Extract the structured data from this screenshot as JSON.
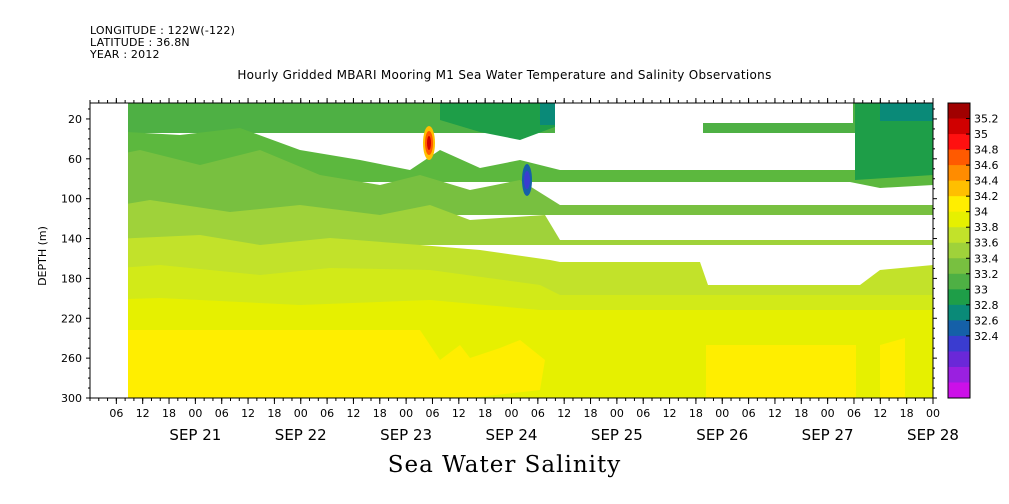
{
  "header": {
    "longitude": "LONGITUDE : 122W(-122)",
    "latitude": "LATITUDE : 36.8N",
    "year": "YEAR : 2012"
  },
  "chart_data": {
    "type": "heatmap",
    "title": "Hourly Gridded MBARI Mooring M1 Sea Water Temperature and Salinity Observations",
    "caption": "Sea Water Salinity",
    "ylabel": "DEPTH (m)",
    "xlabel": "",
    "x_range_hours": [
      "2012-09-20 00:00",
      "2012-09-28 00:00"
    ],
    "ylim": [
      300,
      4
    ],
    "y_ticks": [
      20,
      60,
      100,
      140,
      180,
      220,
      260,
      300
    ],
    "x_hour_ticks": [
      "06",
      "12",
      "18",
      "00",
      "06",
      "12",
      "18",
      "00",
      "06",
      "12",
      "18",
      "00",
      "06",
      "12",
      "18",
      "00",
      "06",
      "12",
      "18",
      "00",
      "06",
      "12",
      "18",
      "00",
      "06",
      "12",
      "18",
      "00",
      "06",
      "12",
      "18",
      "00"
    ],
    "x_day_labels": [
      "SEP 21",
      "SEP 22",
      "SEP 23",
      "SEP 24",
      "SEP 25",
      "SEP 26",
      "SEP 27",
      "SEP 28"
    ],
    "colorbar_levels": [
      "35.2",
      "35",
      "34.8",
      "34.6",
      "34.4",
      "34.2",
      "34",
      "33.8",
      "33.6",
      "33.4",
      "33.2",
      "33",
      "32.8",
      "32.6",
      "32.4"
    ],
    "colorbar_colors": [
      "#a00000",
      "#d00000",
      "#ff1010",
      "#ff5a00",
      "#ff8c00",
      "#ffbf00",
      "#ffee00",
      "#e6f000",
      "#c2e22a",
      "#9fd23a",
      "#78c040",
      "#4eb044",
      "#1e9e48",
      "#0a8a78",
      "#1560a8",
      "#3a3cd0",
      "#6a28d8",
      "#9a20e0",
      "#cc10e8"
    ],
    "missing_data": [
      {
        "time": [
          "2012-09-20 00:00",
          "2012-09-21 12:00"
        ],
        "depth": [
          4,
          300
        ]
      },
      {
        "time": [
          "2012-09-25 03:00",
          "2012-09-26 06:00"
        ],
        "depth": [
          4,
          60
        ]
      },
      {
        "time": [
          "2012-09-26 06:00",
          "2012-09-27 12:00"
        ],
        "depth": [
          4,
          20
        ]
      }
    ],
    "salinity_profile_by_depth": [
      {
        "depth": 10,
        "salinity": 33.3
      },
      {
        "depth": 40,
        "salinity": 33.45
      },
      {
        "depth": 80,
        "salinity": 33.5
      },
      {
        "depth": 120,
        "salinity": 33.7
      },
      {
        "depth": 160,
        "salinity": 33.85
      },
      {
        "depth": 200,
        "salinity": 34.0
      },
      {
        "depth": 240,
        "salinity": 34.2
      },
      {
        "depth": 280,
        "salinity": 34.3
      }
    ],
    "anomalies": [
      {
        "time": "2012-09-24 00:00",
        "depth": 38,
        "salinity": 35.2
      },
      {
        "time": "2012-09-24 20:00",
        "depth": 78,
        "salinity": 32.9
      }
    ]
  }
}
